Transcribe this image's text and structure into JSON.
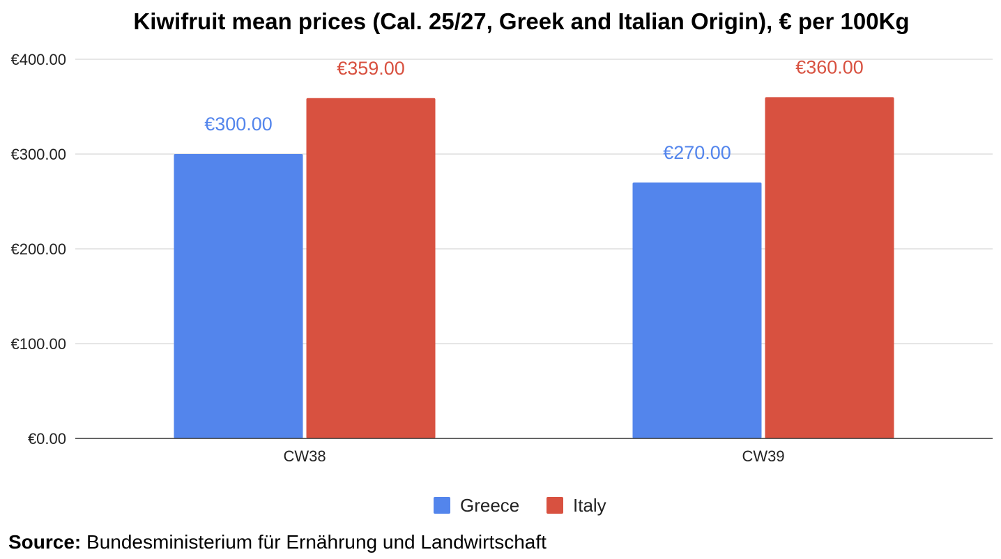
{
  "chart_data": {
    "type": "bar",
    "title": "Kiwifruit mean prices (Cal. 25/27, Greek and Italian Origin), € per 100Kg",
    "xlabel": "",
    "ylabel": "",
    "categories": [
      "CW38",
      "CW39"
    ],
    "series": [
      {
        "name": "Greece",
        "color": "#5385EC",
        "values": [
          300,
          270
        ],
        "labels": [
          "€300.00",
          "€270.00"
        ]
      },
      {
        "name": "Italy",
        "color": "#D85140",
        "values": [
          359,
          360
        ],
        "labels": [
          "€359.00",
          "€360.00"
        ]
      }
    ],
    "ylim": [
      0,
      400
    ],
    "yticks": [
      0,
      100,
      200,
      300,
      400
    ],
    "ytick_labels": [
      "€0.00",
      "€100.00",
      "€200.00",
      "€300.00",
      "€400.00"
    ],
    "grid": true,
    "legend_position": "bottom"
  },
  "source": {
    "label": "Source:",
    "text": " Bundesministerium für Ernährung und Landwirtschaft"
  }
}
